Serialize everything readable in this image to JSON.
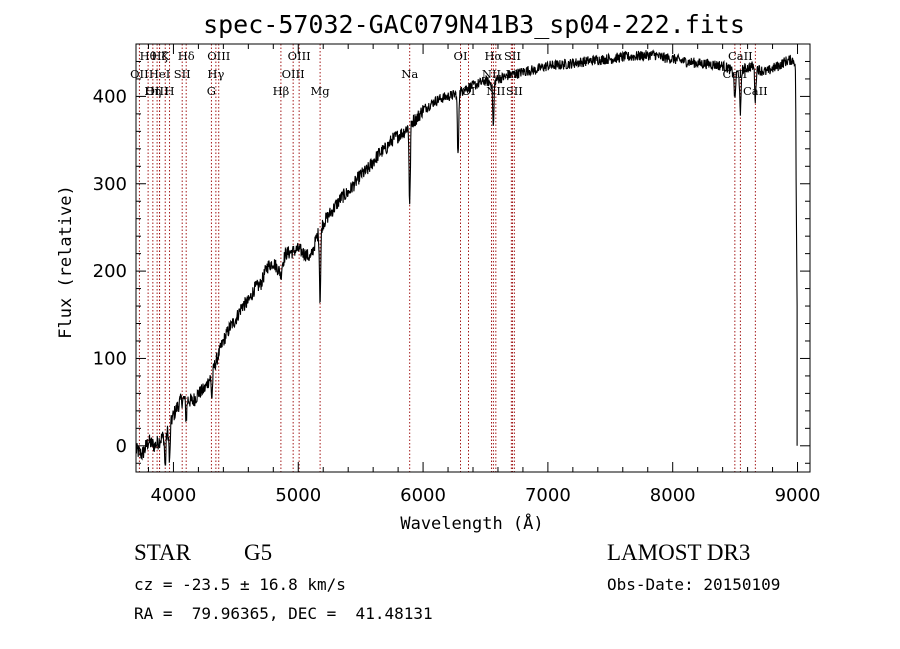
{
  "chart_data": {
    "type": "line",
    "title": "spec-57032-GAC079N41B3_sp04-222.fits",
    "xlabel": "Wavelength (Å)",
    "ylabel": "Flux (relative)",
    "xlim": [
      3700,
      9100
    ],
    "ylim": [
      -30,
      460
    ],
    "xticks": [
      4000,
      5000,
      6000,
      7000,
      8000,
      9000
    ],
    "yticks": [
      0,
      100,
      200,
      300,
      400
    ],
    "x_minor_step": 200,
    "y_minor_step": 20,
    "series": [
      {
        "name": "spectrum",
        "x": [
          3700,
          3750,
          3800,
          3850,
          3900,
          3950,
          4000,
          4050,
          4100,
          4150,
          4200,
          4250,
          4300,
          4350,
          4400,
          4450,
          4500,
          4550,
          4600,
          4650,
          4700,
          4750,
          4800,
          4850,
          4900,
          4950,
          5000,
          5050,
          5100,
          5150,
          5200,
          5250,
          5300,
          5350,
          5400,
          5450,
          5500,
          5550,
          5600,
          5650,
          5700,
          5750,
          5800,
          5850,
          5900,
          5950,
          6000,
          6050,
          6100,
          6150,
          6200,
          6250,
          6300,
          6350,
          6400,
          6450,
          6500,
          6550,
          6600,
          6650,
          6700,
          6750,
          6800,
          6850,
          6900,
          6950,
          7000,
          7100,
          7200,
          7300,
          7400,
          7500,
          7600,
          7700,
          7800,
          7850,
          7900,
          8000,
          8100,
          8200,
          8300,
          8400,
          8450,
          8500,
          8550,
          8600,
          8650,
          8700,
          8750,
          8800,
          8850,
          8900,
          8950,
          8990
        ],
        "y": [
          -5,
          -10,
          5,
          0,
          8,
          15,
          35,
          50,
          55,
          50,
          60,
          65,
          80,
          100,
          120,
          135,
          145,
          160,
          165,
          180,
          185,
          205,
          210,
          200,
          220,
          222,
          225,
          220,
          215,
          240,
          255,
          265,
          275,
          285,
          290,
          300,
          310,
          315,
          325,
          335,
          340,
          350,
          355,
          360,
          370,
          375,
          385,
          390,
          395,
          398,
          400,
          402,
          405,
          410,
          412,
          415,
          418,
          415,
          420,
          422,
          425,
          426,
          428,
          430,
          430,
          433,
          435,
          436,
          438,
          440,
          442,
          443,
          445,
          446,
          447,
          448,
          445,
          443,
          440,
          438,
          437,
          435,
          432,
          425,
          430,
          433,
          435,
          430,
          428,
          432,
          435,
          440,
          442,
          440
        ],
        "dips": [
          {
            "x": 3934,
            "y": -25
          },
          {
            "x": 3969,
            "y": -20
          },
          {
            "x": 4102,
            "y": 30
          },
          {
            "x": 4308,
            "y": 55
          },
          {
            "x": 4861,
            "y": 195
          },
          {
            "x": 5175,
            "y": 165
          },
          {
            "x": 5893,
            "y": 275
          },
          {
            "x": 6280,
            "y": 330
          },
          {
            "x": 6563,
            "y": 365
          },
          {
            "x": 8498,
            "y": 395
          },
          {
            "x": 8542,
            "y": 375
          },
          {
            "x": 8662,
            "y": 395
          },
          {
            "x": 8995,
            "y": 160
          }
        ],
        "color": "#000000"
      }
    ],
    "spectral_lines": [
      {
        "label": "Hθ",
        "x": 3797,
        "row": 0
      },
      {
        "label": "OII",
        "x": 3727,
        "row": 1
      },
      {
        "label": "OIII",
        "x": 3869,
        "row": 2
      },
      {
        "label": "Hη",
        "x": 3835,
        "row": 2
      },
      {
        "label": "Hζ",
        "x": 3889,
        "row": 0
      },
      {
        "label": "HeI",
        "x": 3889,
        "row": 1
      },
      {
        "label": "K",
        "x": 3934,
        "row": 0
      },
      {
        "label": "H",
        "x": 3969,
        "row": 2
      },
      {
        "label": "Hδ",
        "x": 4102,
        "row": 0
      },
      {
        "label": "SII",
        "x": 4070,
        "row": 1
      },
      {
        "label": "OIII",
        "x": 4363,
        "row": 0
      },
      {
        "label": "Hγ",
        "x": 4340,
        "row": 1
      },
      {
        "label": "G",
        "x": 4304,
        "row": 2
      },
      {
        "label": "Hβ",
        "x": 4861,
        "row": 2
      },
      {
        "label": "OIII",
        "x": 5007,
        "row": 0
      },
      {
        "label": "OIII",
        "x": 4959,
        "row": 1
      },
      {
        "label": "Mg",
        "x": 5175,
        "row": 2
      },
      {
        "label": "Na",
        "x": 5893,
        "row": 1
      },
      {
        "label": "OI",
        "x": 6300,
        "row": 0
      },
      {
        "label": "OI",
        "x": 6364,
        "row": 2
      },
      {
        "label": "Hα",
        "x": 6563,
        "row": 0
      },
      {
        "label": "NII",
        "x": 6548,
        "row": 1
      },
      {
        "label": "NII",
        "x": 6583,
        "row": 2
      },
      {
        "label": "SII",
        "x": 6716,
        "row": 0
      },
      {
        "label": "Li",
        "x": 6707,
        "row": 1
      },
      {
        "label": "SII",
        "x": 6731,
        "row": 2
      },
      {
        "label": "CaII",
        "x": 8542,
        "row": 0
      },
      {
        "label": "CaII",
        "x": 8498,
        "row": 1
      },
      {
        "label": "CaII",
        "x": 8662,
        "row": 2
      }
    ],
    "line_color": "#990000"
  },
  "info": {
    "object_class": "STAR",
    "subclass": "G5",
    "survey": "LAMOST DR3",
    "redshift": "cz = -23.5 ± 16.8 km/s",
    "obs_date": "Obs-Date: 20150109",
    "coords": "RA =  79.96365, DEC =  41.48131"
  }
}
